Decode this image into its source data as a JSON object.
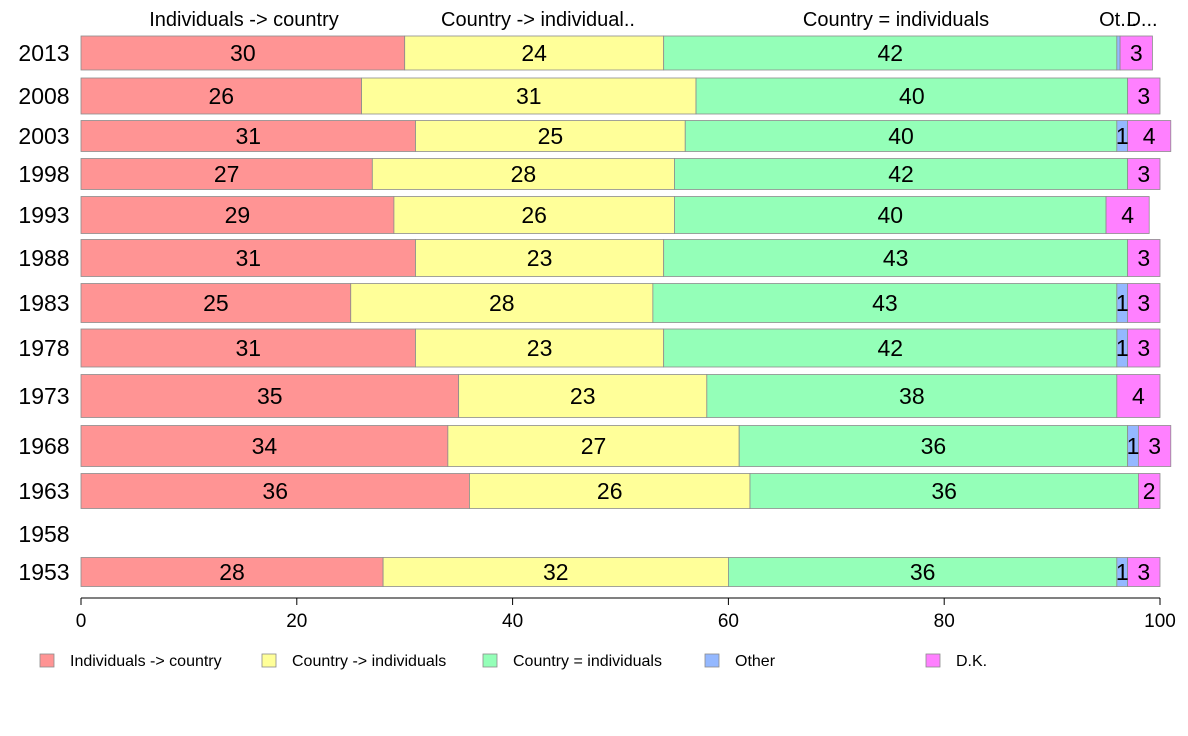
{
  "chart_data": {
    "type": "bar",
    "orientation": "horizontal",
    "stacked": true,
    "xlim": [
      0,
      100
    ],
    "x_ticks": [
      0,
      20,
      40,
      60,
      80,
      100
    ],
    "top_headers": [
      "Individuals -> country",
      "Country -> individual..",
      "Country = individuals",
      "Ot...",
      "D..."
    ],
    "categories": [
      "2013",
      "2008",
      "2003",
      "1998",
      "1993",
      "1988",
      "1983",
      "1978",
      "1973",
      "1968",
      "1963",
      "1958",
      "1953"
    ],
    "series": [
      {
        "name": "Individuals -> country",
        "color": "#ff9494",
        "values": [
          30,
          26,
          31,
          27,
          29,
          31,
          25,
          31,
          35,
          34,
          36,
          null,
          28
        ]
      },
      {
        "name": "Country -> individuals",
        "color": "#ffff99",
        "values": [
          24,
          31,
          25,
          28,
          26,
          23,
          28,
          23,
          23,
          27,
          26,
          null,
          32
        ]
      },
      {
        "name": "Country = individuals",
        "color": "#94ffb8",
        "values": [
          42,
          40,
          40,
          42,
          40,
          43,
          43,
          42,
          38,
          36,
          36,
          null,
          36
        ]
      },
      {
        "name": "Other",
        "color": "#94b8ff",
        "values": [
          0.3,
          0,
          1,
          0,
          0,
          0,
          1,
          1,
          0,
          1,
          0,
          null,
          1
        ]
      },
      {
        "name": "D.K.",
        "color": "#ff80ff",
        "values": [
          3,
          3,
          4,
          3,
          4,
          3,
          3,
          3,
          4,
          3,
          2,
          null,
          3
        ]
      }
    ],
    "data_labels": [
      [
        "30",
        "24",
        "42",
        "",
        "3"
      ],
      [
        "26",
        "31",
        "40",
        "",
        "3"
      ],
      [
        "31",
        "25",
        "40",
        "1",
        "4"
      ],
      [
        "27",
        "28",
        "42",
        "",
        "3"
      ],
      [
        "29",
        "26",
        "40",
        "",
        "4"
      ],
      [
        "31",
        "23",
        "43",
        "",
        "3"
      ],
      [
        "25",
        "28",
        "43",
        "1",
        "3"
      ],
      [
        "31",
        "23",
        "42",
        "1",
        "3"
      ],
      [
        "35",
        "23",
        "38",
        "",
        "4"
      ],
      [
        "34",
        "27",
        "36",
        "1",
        "3"
      ],
      [
        "36",
        "26",
        "36",
        "",
        "2"
      ],
      [
        "",
        "",
        "",
        "",
        ""
      ],
      [
        "28",
        "32",
        "36",
        "1",
        "3"
      ]
    ],
    "legend_position": "bottom",
    "grid": false
  }
}
